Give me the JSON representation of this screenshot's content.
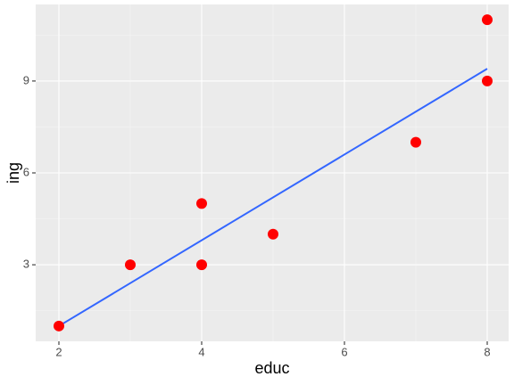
{
  "chart_data": {
    "type": "scatter",
    "x_label": "educ",
    "y_label": "ing",
    "series": [
      {
        "x": [
          2,
          3,
          4,
          4,
          5,
          7,
          8,
          8
        ],
        "values": [
          1,
          3,
          5,
          3,
          4,
          7,
          11,
          9
        ],
        "color": "#ff0000"
      }
    ],
    "fit": {
      "x": [
        2,
        8
      ],
      "values": [
        1,
        9.4
      ],
      "color": "#3366ff"
    },
    "xlim": [
      1.675,
      8.3
    ],
    "ylim": [
      0.5,
      11.5
    ],
    "xticks": [
      2,
      4,
      6,
      8
    ],
    "yticks": [
      3,
      6,
      9
    ],
    "grid": true,
    "panel_color": "#ebebeb"
  }
}
